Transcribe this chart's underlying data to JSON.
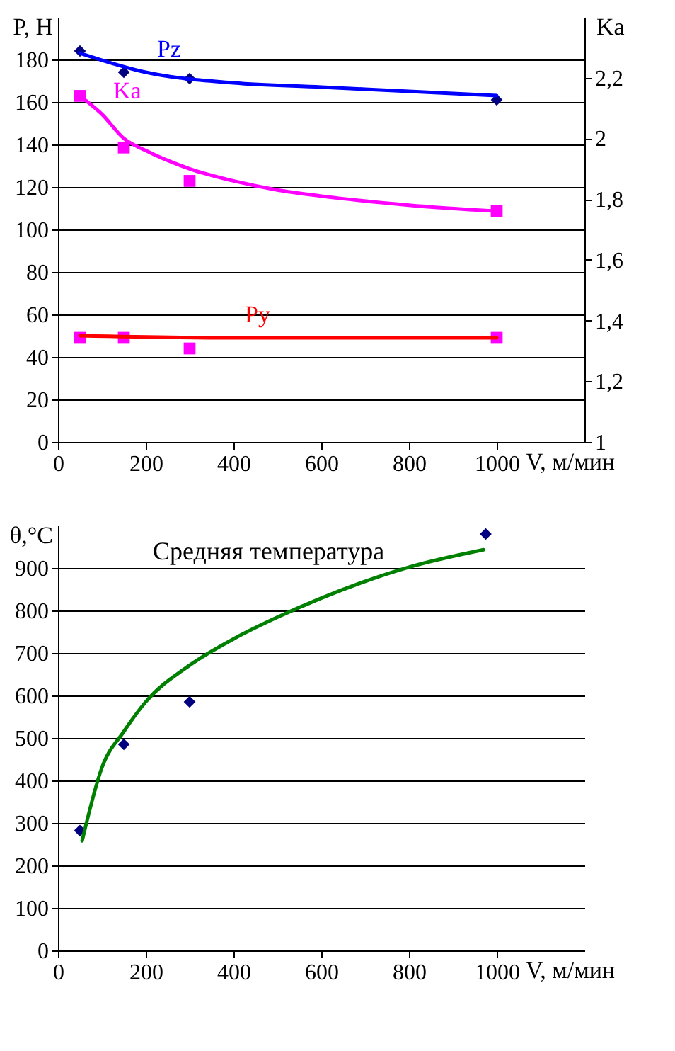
{
  "chart_data": [
    {
      "type": "line",
      "xlabel": "V, м/мин",
      "ylabel": "P, H",
      "y2label": "Ka",
      "xlim": [
        0,
        1200
      ],
      "xticks": [
        0,
        200,
        400,
        600,
        800,
        1000
      ],
      "ylim": [
        0,
        200
      ],
      "yticks": [
        0,
        20,
        40,
        60,
        80,
        100,
        120,
        140,
        160,
        180
      ],
      "y2lim": [
        1,
        2.4
      ],
      "y2ticks": [
        1,
        {
          "value": 1.2,
          "label": "1,2"
        },
        {
          "value": 1.4,
          "label": "1,4"
        },
        {
          "value": 1.6,
          "label": "1,6"
        },
        {
          "value": 1.8,
          "label": "1,8"
        },
        2,
        {
          "value": 2.2,
          "label": "2,2"
        }
      ],
      "grid": "y",
      "series": [
        {
          "type": "scatter",
          "marker": "diamond",
          "color": "#000080",
          "x": [
            50,
            150,
            300,
            1000
          ],
          "values": [
            184,
            174,
            171,
            161
          ]
        },
        {
          "type": "line",
          "name": "Pz",
          "color": "#0000ff",
          "x": [
            50,
            200,
            400,
            600,
            800,
            1000
          ],
          "values": [
            183,
            174,
            169,
            167,
            165,
            163
          ]
        },
        {
          "type": "scatter",
          "marker": "square",
          "color": "#ff00ff",
          "axis": "y2",
          "x": [
            50,
            150,
            300,
            1000
          ],
          "values": [
            2.14,
            1.97,
            1.86,
            1.76
          ]
        },
        {
          "type": "line",
          "name": "Ka",
          "color": "#ff00ff",
          "axis": "y2",
          "x": [
            50,
            100,
            150,
            200,
            300,
            400,
            500,
            600,
            800,
            1000
          ],
          "values": [
            2.14,
            2.08,
            2.0,
            1.96,
            1.9,
            1.86,
            1.83,
            1.81,
            1.78,
            1.76
          ]
        },
        {
          "type": "scatter",
          "marker": "square",
          "color": "#ff00ff",
          "x": [
            50,
            150,
            300,
            1000
          ],
          "values": [
            49,
            49,
            44,
            49
          ]
        },
        {
          "type": "line",
          "name": "Py",
          "color": "#ff0000",
          "x": [
            50,
            400,
            1000
          ],
          "values": [
            50,
            49,
            49
          ]
        }
      ]
    },
    {
      "type": "line",
      "xlabel": "V, м/мин",
      "ylabel": "θ,°C",
      "xlim": [
        0,
        1200
      ],
      "xticks": [
        0,
        200,
        400,
        600,
        800,
        1000
      ],
      "ylim": [
        0,
        1000
      ],
      "yticks": [
        0,
        100,
        200,
        300,
        400,
        500,
        600,
        700,
        800,
        900
      ],
      "grid": "y",
      "annotations": [
        "Средняя температура"
      ],
      "series": [
        {
          "type": "scatter",
          "marker": "diamond",
          "color": "#000080",
          "x": [
            50,
            150,
            300,
            975
          ],
          "values": [
            282,
            485,
            585,
            980
          ]
        },
        {
          "type": "line",
          "color": "#008000",
          "x": [
            55,
            100,
            150,
            200,
            300,
            400,
            500,
            600,
            800,
            970
          ],
          "values": [
            258,
            430,
            515,
            585,
            671,
            733,
            784,
            829,
            902,
            943
          ]
        }
      ]
    }
  ]
}
